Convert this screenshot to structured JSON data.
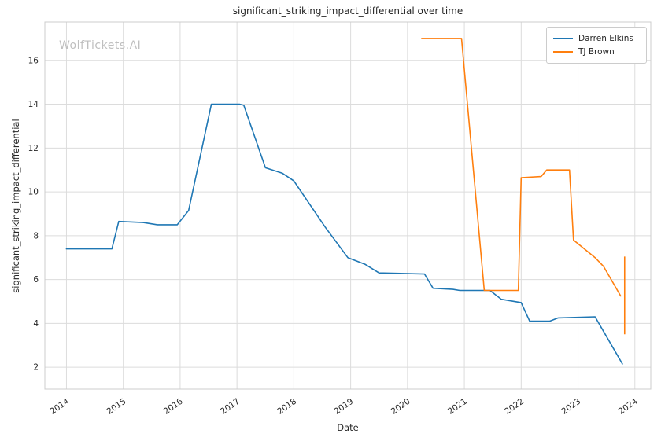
{
  "title": "significant_striking_impact_differential over time",
  "xlabel": "Date",
  "ylabel": "significant_striking_impact_differential",
  "watermark": "WolfTickets.AI",
  "colors": {
    "series_blue": "#1f77b4",
    "series_orange": "#ff7f0e",
    "grid": "#dcdcdc",
    "plot_border": "#cccccc",
    "text": "#262626",
    "watermark": "#bfbfbf"
  },
  "chart_data": {
    "type": "line",
    "title": "significant_striking_impact_differential over time",
    "xlabel": "Date",
    "ylabel": "significant_striking_impact_differential",
    "grid": true,
    "legend_position": "upper right",
    "x_ticks": [
      2014,
      2015,
      2016,
      2017,
      2018,
      2019,
      2020,
      2021,
      2022,
      2023,
      2024
    ],
    "y_ticks": [
      2,
      4,
      6,
      8,
      10,
      12,
      14,
      16
    ],
    "x_range": [
      2013.62,
      2024.28
    ],
    "y_range": [
      1.0,
      17.75
    ],
    "series": [
      {
        "name": "Darren Elkins",
        "color": "#1f77b4",
        "points": [
          [
            2014.0,
            7.4
          ],
          [
            2014.8,
            7.4
          ],
          [
            2014.92,
            8.65
          ],
          [
            2015.35,
            8.6
          ],
          [
            2015.6,
            8.5
          ],
          [
            2015.95,
            8.5
          ],
          [
            2016.15,
            9.15
          ],
          [
            2016.55,
            14.0
          ],
          [
            2017.05,
            14.0
          ],
          [
            2017.12,
            13.95
          ],
          [
            2017.5,
            11.1
          ],
          [
            2017.8,
            10.85
          ],
          [
            2018.0,
            10.5
          ],
          [
            2018.55,
            8.4
          ],
          [
            2018.95,
            7.0
          ],
          [
            2019.25,
            6.7
          ],
          [
            2019.5,
            6.3
          ],
          [
            2020.3,
            6.25
          ],
          [
            2020.45,
            5.6
          ],
          [
            2020.8,
            5.55
          ],
          [
            2020.92,
            5.5
          ],
          [
            2021.45,
            5.5
          ],
          [
            2021.65,
            5.1
          ],
          [
            2022.0,
            4.95
          ],
          [
            2022.15,
            4.1
          ],
          [
            2022.5,
            4.1
          ],
          [
            2022.65,
            4.25
          ],
          [
            2023.3,
            4.3
          ],
          [
            2023.78,
            2.15
          ]
        ]
      },
      {
        "name": "TJ Brown",
        "color": "#ff7f0e",
        "points": [
          [
            2020.25,
            17.0
          ],
          [
            2020.95,
            17.0
          ],
          [
            2021.35,
            5.5
          ],
          [
            2021.95,
            5.5
          ],
          [
            2022.0,
            10.65
          ],
          [
            2022.35,
            10.7
          ],
          [
            2022.45,
            11.0
          ],
          [
            2022.85,
            11.0
          ],
          [
            2022.92,
            7.8
          ],
          [
            2023.3,
            7.0
          ],
          [
            2023.45,
            6.6
          ],
          [
            2023.75,
            5.25
          ]
        ],
        "end_bar": {
          "x": 2023.82,
          "y1": 3.5,
          "y2": 7.05
        }
      }
    ]
  }
}
